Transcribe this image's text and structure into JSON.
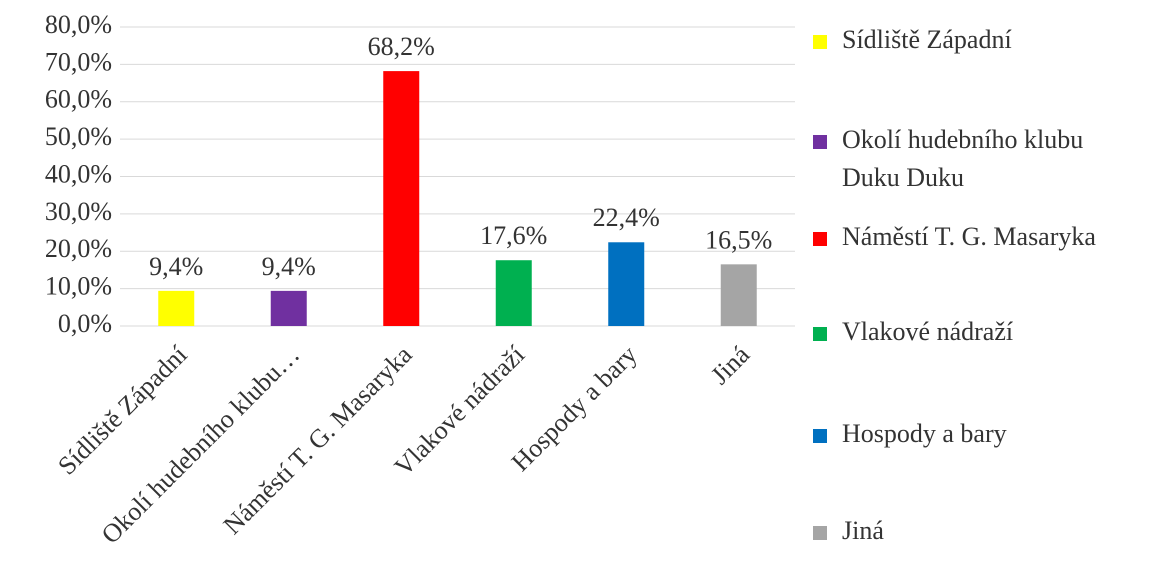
{
  "chart_data": {
    "type": "bar",
    "categories": [
      "Sídliště Západní",
      "Okolí hudebního klubu…",
      "Náměstí T. G. Masaryka",
      "Vlakové nádraží",
      "Hospody a bary",
      "Jiná"
    ],
    "legend_labels": [
      "Sídliště Západní",
      "Okolí hudebního klubu Duku Duku",
      "Náměstí T. G. Masaryka",
      "Vlakové nádraží",
      "Hospody a bary",
      "Jiná"
    ],
    "values": [
      9.4,
      9.4,
      68.2,
      17.6,
      22.4,
      16.5
    ],
    "value_labels": [
      "9,4%",
      "9,4%",
      "68,2%",
      "17,6%",
      "22,4%",
      "16,5%"
    ],
    "colors": [
      "#ffff00",
      "#7030a0",
      "#ff0000",
      "#00b050",
      "#0070c0",
      "#a5a5a5"
    ],
    "ylim": [
      0,
      80
    ],
    "yticks": [
      {
        "value": 0,
        "label": "0,0%"
      },
      {
        "value": 10,
        "label": "10,0%"
      },
      {
        "value": 20,
        "label": "20,0%"
      },
      {
        "value": 30,
        "label": "30,0%"
      },
      {
        "value": 40,
        "label": "40,0%"
      },
      {
        "value": 50,
        "label": "50,0%"
      },
      {
        "value": 60,
        "label": "60,0%"
      },
      {
        "value": 70,
        "label": "70,0%"
      },
      {
        "value": 80,
        "label": "80,0%"
      }
    ],
    "grid": true,
    "legend": "right"
  }
}
